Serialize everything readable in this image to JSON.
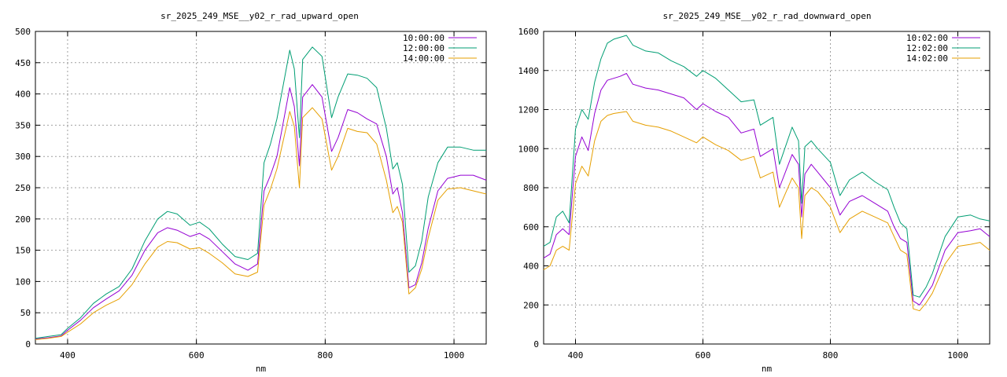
{
  "chart_data": [
    {
      "type": "line",
      "title": "sr_2025_249_MSE__y02_r_rad_upward_open",
      "xlabel": "nm",
      "ylabel": "",
      "xlim": [
        350,
        1050
      ],
      "ylim": [
        0,
        500
      ],
      "xticks": [
        400,
        600,
        800,
        1000
      ],
      "yticks": [
        0,
        50,
        100,
        150,
        200,
        250,
        300,
        350,
        400,
        450,
        500
      ],
      "grid": true,
      "legend_position": "top-right",
      "x": [
        350,
        370,
        390,
        400,
        420,
        440,
        460,
        480,
        500,
        520,
        540,
        555,
        570,
        590,
        605,
        620,
        640,
        660,
        680,
        695,
        705,
        715,
        725,
        745,
        752,
        760,
        765,
        780,
        795,
        810,
        820,
        835,
        850,
        865,
        880,
        895,
        905,
        912,
        920,
        930,
        940,
        950,
        960,
        975,
        990,
        1010,
        1030,
        1050
      ],
      "series": [
        {
          "name": "10:00:00",
          "color": "#9400d3",
          "values": [
            8,
            10,
            13,
            22,
            38,
            58,
            72,
            85,
            110,
            150,
            178,
            186,
            182,
            172,
            177,
            168,
            148,
            128,
            118,
            128,
            245,
            270,
            300,
            410,
            380,
            285,
            395,
            415,
            395,
            308,
            330,
            375,
            370,
            360,
            352,
            300,
            240,
            250,
            210,
            90,
            95,
            130,
            185,
            245,
            265,
            270,
            270,
            262
          ]
        },
        {
          "name": "12:00:00",
          "color": "#009e73",
          "values": [
            9,
            12,
            15,
            25,
            42,
            65,
            80,
            92,
            120,
            165,
            200,
            212,
            208,
            190,
            195,
            184,
            160,
            140,
            135,
            145,
            290,
            320,
            360,
            470,
            440,
            330,
            455,
            475,
            460,
            362,
            395,
            432,
            430,
            425,
            410,
            345,
            280,
            290,
            255,
            115,
            125,
            165,
            235,
            290,
            315,
            315,
            310,
            310
          ]
        },
        {
          "name": "14:00:00",
          "color": "#e69f00",
          "values": [
            7,
            9,
            12,
            19,
            32,
            50,
            62,
            72,
            95,
            128,
            155,
            164,
            162,
            152,
            154,
            145,
            130,
            112,
            108,
            115,
            222,
            248,
            280,
            372,
            348,
            250,
            362,
            378,
            360,
            278,
            300,
            345,
            340,
            338,
            320,
            262,
            210,
            220,
            195,
            80,
            90,
            120,
            170,
            230,
            248,
            250,
            245,
            240
          ]
        }
      ]
    },
    {
      "type": "line",
      "title": "sr_2025_249_MSE__y02_r_rad_downward_open",
      "xlabel": "nm",
      "ylabel": "",
      "xlim": [
        350,
        1050
      ],
      "ylim": [
        0,
        1600
      ],
      "xticks": [
        400,
        600,
        800,
        1000
      ],
      "yticks": [
        0,
        200,
        400,
        600,
        800,
        1000,
        1200,
        1400,
        1600
      ],
      "grid": true,
      "legend_position": "top-right",
      "x": [
        350,
        360,
        370,
        380,
        390,
        400,
        410,
        420,
        430,
        440,
        450,
        460,
        470,
        480,
        490,
        510,
        530,
        550,
        570,
        590,
        600,
        620,
        640,
        660,
        680,
        690,
        710,
        720,
        740,
        750,
        755,
        760,
        770,
        780,
        800,
        815,
        830,
        850,
        870,
        890,
        900,
        910,
        920,
        930,
        940,
        950,
        960,
        980,
        1000,
        1020,
        1035,
        1050
      ],
      "series": [
        {
          "name": "10:02:00",
          "color": "#9400d3",
          "values": [
            440,
            460,
            560,
            590,
            560,
            960,
            1060,
            990,
            1180,
            1300,
            1350,
            1360,
            1370,
            1385,
            1330,
            1310,
            1300,
            1280,
            1260,
            1200,
            1230,
            1190,
            1160,
            1080,
            1100,
            960,
            1000,
            800,
            970,
            920,
            650,
            870,
            920,
            880,
            800,
            660,
            730,
            760,
            720,
            680,
            600,
            540,
            520,
            220,
            200,
            250,
            300,
            480,
            570,
            580,
            590,
            550
          ]
        },
        {
          "name": "12:02:00",
          "color": "#009e73",
          "values": [
            500,
            520,
            650,
            680,
            620,
            1100,
            1200,
            1150,
            1340,
            1460,
            1540,
            1560,
            1570,
            1580,
            1530,
            1500,
            1490,
            1450,
            1420,
            1370,
            1400,
            1360,
            1300,
            1240,
            1250,
            1120,
            1160,
            920,
            1110,
            1040,
            720,
            1010,
            1040,
            1000,
            930,
            760,
            840,
            880,
            830,
            790,
            700,
            620,
            590,
            250,
            240,
            290,
            360,
            550,
            650,
            660,
            640,
            630
          ]
        },
        {
          "name": "14:02:00",
          "color": "#e69f00",
          "values": [
            380,
            400,
            480,
            500,
            480,
            820,
            910,
            860,
            1040,
            1140,
            1170,
            1180,
            1185,
            1190,
            1140,
            1120,
            1110,
            1090,
            1060,
            1030,
            1060,
            1020,
            990,
            940,
            960,
            850,
            880,
            700,
            850,
            800,
            540,
            760,
            800,
            780,
            700,
            570,
            640,
            680,
            650,
            620,
            550,
            480,
            460,
            180,
            170,
            210,
            260,
            410,
            500,
            510,
            520,
            480
          ]
        }
      ]
    }
  ]
}
